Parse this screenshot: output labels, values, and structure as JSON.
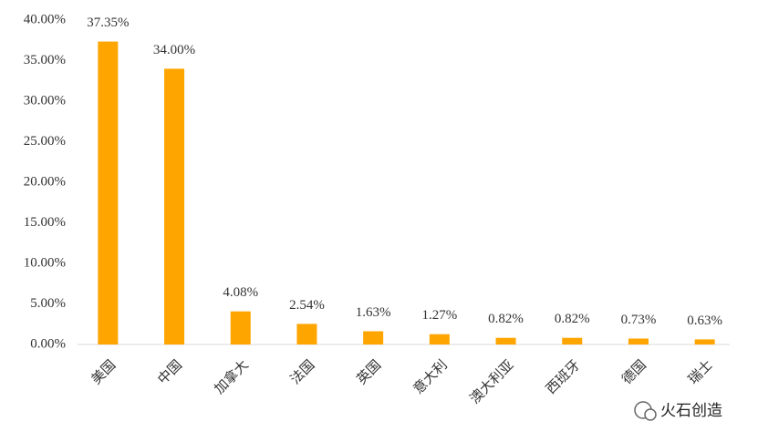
{
  "chart_data": {
    "type": "bar",
    "categories": [
      "美国",
      "中国",
      "加拿大",
      "法国",
      "英国",
      "意大利",
      "澳大利亚",
      "西班牙",
      "德国",
      "瑞士"
    ],
    "values": [
      37.35,
      34.0,
      4.08,
      2.54,
      1.63,
      1.27,
      0.82,
      0.82,
      0.73,
      0.63
    ],
    "value_labels": [
      "37.35%",
      "34.00%",
      "4.08%",
      "2.54%",
      "1.63%",
      "1.27%",
      "0.82%",
      "0.82%",
      "0.73%",
      "0.63%"
    ],
    "color": "#ffa500",
    "ylim": [
      0,
      40
    ],
    "yticks": [
      {
        "value": 0,
        "label": "0.00%"
      },
      {
        "value": 5,
        "label": "5.00%"
      },
      {
        "value": 10,
        "label": "10.00%"
      },
      {
        "value": 15,
        "label": "15.00%"
      },
      {
        "value": 20,
        "label": "20.00%"
      },
      {
        "value": 25,
        "label": "25.00%"
      },
      {
        "value": 30,
        "label": "30.00%"
      },
      {
        "value": 35,
        "label": "35.00%"
      },
      {
        "value": 40,
        "label": "40.00%"
      }
    ],
    "grid": false
  },
  "watermark": "火石创造"
}
